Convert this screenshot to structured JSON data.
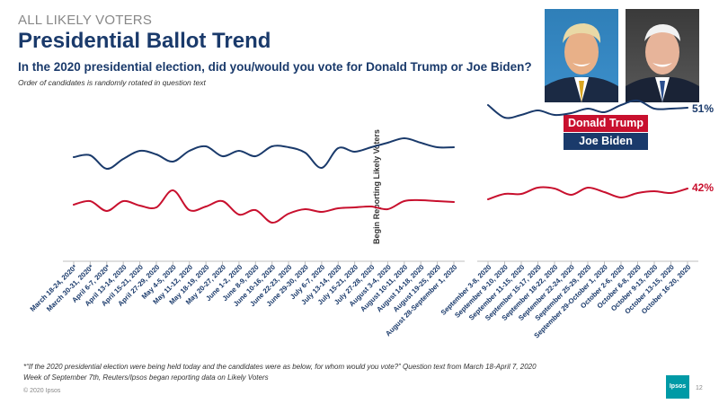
{
  "header": {
    "section_label": "ALL LIKELY VOTERS",
    "title": "Presidential Ballot Trend",
    "question": "In the 2020 presidential election, did you/would you vote for Donald Trump or Joe Biden?",
    "note": "Order of candidates is randomly rotated in question text"
  },
  "photos": {
    "trump": "Donald Trump photo",
    "biden": "Joe Biden photo"
  },
  "legend": {
    "trump": "Donald Trump",
    "biden": "Joe Biden"
  },
  "likely_voters_label": "Begin Reporting Likely Voters",
  "footnotes": {
    "line1": "*“If the 2020 presidential election were being held today and the candidates were as below, for whom would you vote?” Question text from March 18-April 7, 2020",
    "line2": "Week of September 7th, Reuters/Ipsos began reporting data on Likely Voters"
  },
  "copyright": "© 2020 Ipsos",
  "logo": "Ipsos",
  "page_number": "12",
  "colors": {
    "trump": "#c8102e",
    "biden": "#1a3a6b"
  },
  "chart_data": {
    "type": "line",
    "title": "Presidential Ballot Trend",
    "end_labels": {
      "biden": "51%",
      "trump": "42%"
    },
    "segment1": {
      "categories": [
        "March 18-24, 2020*",
        "March 30-31, 2020*",
        "April 6-7, 2020*",
        "April 13-14, 2020",
        "April 15-21, 2020",
        "April 27-29, 2020",
        "May 4-5, 2020",
        "May 11-12, 2020",
        "May 18-19, 2020",
        "May 20-27, 2020",
        "June 1-2, 2020",
        "June 8-9, 2020",
        "June 10-16, 2020",
        "June 22-23, 2020",
        "June 29-30, 2020",
        "July 6-7, 2020",
        "July 13-14, 2020",
        "July 15-21, 2020",
        "July 27-28, 2020",
        "August 3-4, 2020",
        "August 10-11, 2020",
        "August 14-18, 2020",
        "August 19-25, 2020",
        "August 28-September 1, 2020"
      ],
      "series": [
        {
          "name": "Joe Biden",
          "values": [
            45.5,
            45.7,
            44.2,
            45.3,
            46.2,
            45.8,
            45.0,
            46.2,
            46.7,
            45.6,
            46.2,
            45.6,
            46.7,
            46.6,
            46.0,
            44.3,
            46.5,
            46.1,
            46.6,
            47.1,
            47.6,
            47.1,
            46.6,
            46.6
          ]
        },
        {
          "name": "Donald Trump",
          "values": [
            40.2,
            40.6,
            39.5,
            40.6,
            40.1,
            39.9,
            41.8,
            39.6,
            40.0,
            40.6,
            39.1,
            39.6,
            38.2,
            39.2,
            39.7,
            39.4,
            39.8,
            39.9,
            40.0,
            39.7,
            40.6,
            40.7,
            40.6,
            40.5
          ]
        }
      ]
    },
    "segment2": {
      "categories": [
        "September 3-8, 2020",
        "September 9-10, 2020",
        "September 11-15, 2020",
        "September 15-17, 2020",
        "September 18-22, 2020",
        "September 22-24, 2020",
        "September 25-29, 2020",
        "September 29-October 1, 2020",
        "October 2-6, 2020",
        "October 6-8, 2020",
        "October 9-13, 2020",
        "October 13-15, 2020",
        "October 16-20, 2020"
      ],
      "series": [
        {
          "name": "Joe Biden",
          "values": [
            51.3,
            49.9,
            50.2,
            50.7,
            50.2,
            50.4,
            50.9,
            50.5,
            51.3,
            51.8,
            50.9,
            50.9,
            51.0
          ]
        },
        {
          "name": "Donald Trump",
          "values": [
            40.8,
            41.4,
            41.4,
            42.1,
            42.0,
            41.3,
            42.1,
            41.6,
            41.0,
            41.5,
            41.7,
            41.5,
            42.0
          ]
        }
      ]
    },
    "ylim": [
      30,
      60
    ],
    "xlabel": "",
    "ylabel": ""
  }
}
